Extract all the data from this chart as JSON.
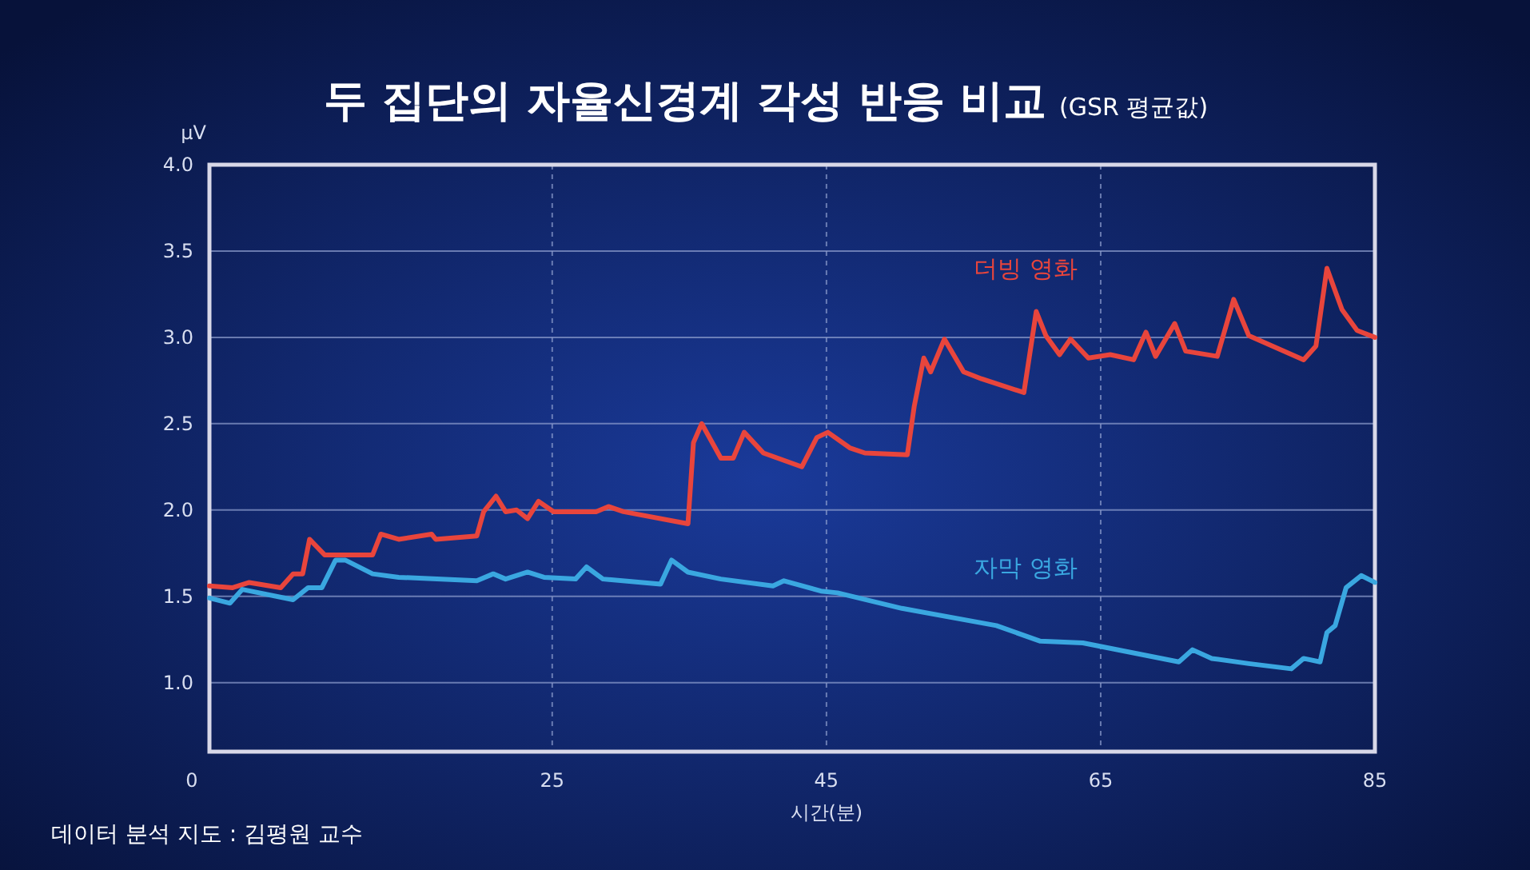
{
  "chart_data": {
    "type": "line",
    "title": "두 집단의 자율신경계 각성 반응 비교",
    "subtitle": "(GSR 평균값)",
    "ylabel": "μV",
    "xlabel": "시간(분)",
    "annotations": [
      "데이터 분석 지도 : 김평원 교수"
    ],
    "xlim": [
      0,
      85
    ],
    "xticks": [
      0,
      25,
      45,
      65,
      85
    ],
    "ylim": [
      0.6,
      4.0
    ],
    "yticks": [
      {
        "value": 1.0,
        "label": "1.0"
      },
      1.5,
      {
        "value": 2.0,
        "label": "2.0"
      },
      2.5,
      {
        "value": 3.0,
        "label": "3.0"
      },
      3.5,
      {
        "value": 4.0,
        "label": "4.0"
      }
    ],
    "grid": true,
    "legend": false,
    "marker": "none",
    "line_style": "solid",
    "series": [
      {
        "name": "더빙 영화",
        "color": "#e8453c",
        "x": [
          0,
          1.7,
          2.9,
          5.2,
          6.1,
          6.8,
          7.3,
          8.4,
          9.2,
          11.9,
          12.5,
          13.8,
          16.2,
          16.5,
          19.5,
          20.0,
          20.9,
          21.6,
          22.4,
          23.2,
          24.0,
          25.1,
          28.2,
          29.1,
          30.2,
          34.9,
          35.3,
          35.9,
          37.3,
          38.2,
          39.0,
          40.4,
          43.2,
          44.3,
          45.1,
          46.7,
          47.8,
          50.9,
          51.4,
          52.1,
          52.6,
          53.6,
          55.0,
          56.3,
          59.4,
          60.3,
          61.0,
          62.0,
          62.8,
          64.1,
          65.7,
          67.4,
          68.3,
          69.0,
          70.4,
          71.2,
          73.5,
          74.7,
          75.8,
          79.8,
          80.7,
          81.5,
          82.6,
          83.7,
          85
        ],
        "values": [
          1.56,
          1.55,
          1.58,
          1.55,
          1.63,
          1.63,
          1.83,
          1.74,
          1.74,
          1.74,
          1.86,
          1.83,
          1.86,
          1.83,
          1.85,
          1.99,
          2.08,
          1.99,
          2.0,
          1.95,
          2.05,
          1.99,
          1.99,
          2.02,
          1.99,
          1.92,
          2.39,
          2.5,
          2.3,
          2.3,
          2.45,
          2.33,
          2.25,
          2.42,
          2.45,
          2.36,
          2.33,
          2.32,
          2.6,
          2.88,
          2.8,
          2.99,
          2.8,
          2.76,
          2.68,
          3.15,
          3.01,
          2.9,
          2.99,
          2.88,
          2.9,
          2.87,
          3.03,
          2.89,
          3.08,
          2.92,
          2.89,
          3.22,
          3.01,
          2.87,
          2.95,
          3.4,
          3.16,
          3.04,
          3.0
        ]
      },
      {
        "name": "자막 영화",
        "color": "#3aa7e0",
        "x": [
          0,
          1.5,
          2.4,
          6.1,
          7.2,
          8.2,
          9.2,
          9.9,
          11.9,
          13.8,
          19.5,
          20.7,
          21.6,
          23.2,
          24.4,
          26.7,
          27.5,
          28.7,
          32.9,
          33.7,
          34.9,
          37.3,
          41.1,
          41.9,
          44.6,
          45.8,
          50.5,
          57.4,
          60.6,
          63.7,
          70.7,
          71.7,
          73.1,
          75.8,
          78.9,
          79.8,
          81.0,
          81.5,
          82.1,
          82.9,
          84.0,
          85
        ],
        "values": [
          1.49,
          1.46,
          1.54,
          1.48,
          1.55,
          1.55,
          1.71,
          1.71,
          1.63,
          1.61,
          1.59,
          1.63,
          1.6,
          1.64,
          1.61,
          1.6,
          1.67,
          1.6,
          1.57,
          1.71,
          1.64,
          1.6,
          1.56,
          1.59,
          1.53,
          1.52,
          1.43,
          1.33,
          1.24,
          1.23,
          1.12,
          1.19,
          1.14,
          1.11,
          1.08,
          1.14,
          1.12,
          1.29,
          1.33,
          1.55,
          1.62,
          1.58
        ]
      }
    ]
  }
}
